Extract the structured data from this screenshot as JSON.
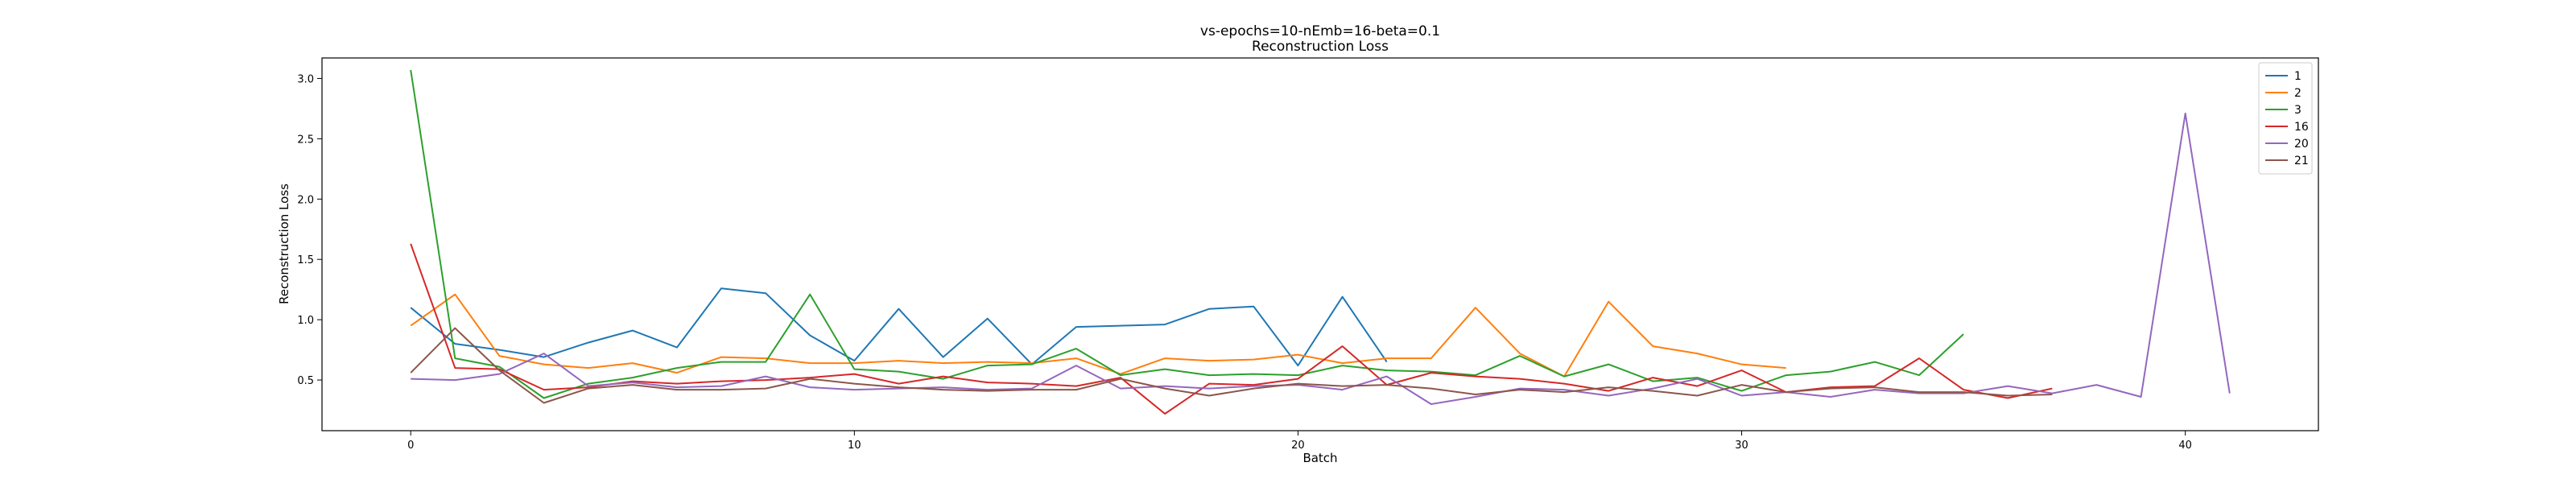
{
  "chart_data": {
    "type": "line",
    "title": "vs-epochs=10-nEmb=16-beta=0.1",
    "subtitle": "Reconstruction Loss",
    "xlabel": "Batch",
    "ylabel": "Reconstruction Loss",
    "xlim": [
      -2,
      43
    ],
    "ylim": [
      0.08,
      3.17
    ],
    "xticks": [
      0,
      10,
      20,
      30,
      40
    ],
    "yticks": [
      0.5,
      1.0,
      1.5,
      2.0,
      2.5,
      3.0
    ],
    "grid": false,
    "legend_position": "top-right",
    "series": [
      {
        "name": "1",
        "color": "#1f77b4",
        "x_start": 0,
        "values": [
          1.1,
          0.8,
          0.75,
          0.69,
          0.81,
          0.91,
          0.77,
          1.26,
          1.22,
          0.87,
          0.66,
          1.09,
          0.69,
          1.01,
          0.63,
          0.94,
          0.95,
          0.96,
          1.09,
          1.11,
          0.62,
          1.19,
          0.65
        ]
      },
      {
        "name": "2",
        "color": "#ff7f0e",
        "x_start": 0,
        "values": [
          0.95,
          1.21,
          0.7,
          0.63,
          0.6,
          0.64,
          0.56,
          0.69,
          0.68,
          0.64,
          0.64,
          0.66,
          0.64,
          0.65,
          0.64,
          0.68,
          0.55,
          0.68,
          0.66,
          0.67,
          0.71,
          0.64,
          0.68,
          0.68,
          1.1,
          0.72,
          0.53,
          1.15,
          0.78,
          0.72,
          0.63,
          0.6
        ]
      },
      {
        "name": "3",
        "color": "#2ca02c",
        "x_start": 0,
        "values": [
          3.07,
          0.68,
          0.61,
          0.35,
          0.47,
          0.52,
          0.6,
          0.65,
          0.65,
          1.21,
          0.59,
          0.57,
          0.51,
          0.62,
          0.63,
          0.76,
          0.54,
          0.59,
          0.54,
          0.55,
          0.54,
          0.62,
          0.58,
          0.57,
          0.54,
          0.7,
          0.53,
          0.63,
          0.49,
          0.52,
          0.41,
          0.54,
          0.57,
          0.65,
          0.54,
          0.88
        ]
      },
      {
        "name": "16",
        "color": "#d62728",
        "x_start": 0,
        "values": [
          1.63,
          0.6,
          0.59,
          0.42,
          0.44,
          0.49,
          0.47,
          0.49,
          0.5,
          0.52,
          0.55,
          0.47,
          0.53,
          0.48,
          0.47,
          0.45,
          0.52,
          0.22,
          0.47,
          0.46,
          0.51,
          0.78,
          0.46,
          0.56,
          0.53,
          0.51,
          0.47,
          0.41,
          0.52,
          0.45,
          0.58,
          0.4,
          0.44,
          0.45,
          0.68,
          0.42,
          0.35,
          0.43
        ]
      },
      {
        "name": "20",
        "color": "#9467bd",
        "x_start": 0,
        "values": [
          0.51,
          0.5,
          0.55,
          0.72,
          0.45,
          0.48,
          0.44,
          0.45,
          0.53,
          0.44,
          0.42,
          0.43,
          0.44,
          0.42,
          0.43,
          0.62,
          0.43,
          0.45,
          0.43,
          0.45,
          0.46,
          0.42,
          0.53,
          0.3,
          0.36,
          0.43,
          0.42,
          0.37,
          0.43,
          0.51,
          0.37,
          0.4,
          0.36,
          0.42,
          0.39,
          0.39,
          0.45,
          0.39,
          0.46,
          0.36,
          2.71,
          0.39
        ]
      },
      {
        "name": "21",
        "color": "#8c564b",
        "x_start": 0,
        "values": [
          0.56,
          0.93,
          0.58,
          0.31,
          0.43,
          0.46,
          0.42,
          0.42,
          0.43,
          0.51,
          0.47,
          0.44,
          0.42,
          0.41,
          0.42,
          0.42,
          0.51,
          0.43,
          0.37,
          0.43,
          0.47,
          0.45,
          0.46,
          0.43,
          0.38,
          0.42,
          0.4,
          0.44,
          0.41,
          0.37,
          0.46,
          0.4,
          0.43,
          0.44,
          0.4,
          0.4,
          0.37,
          0.38
        ]
      }
    ]
  }
}
